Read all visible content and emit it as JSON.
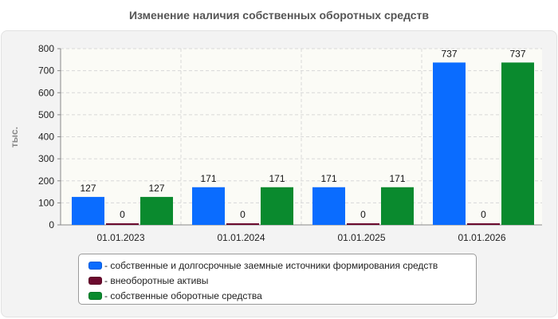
{
  "chart_data": {
    "type": "bar",
    "title": "Изменение наличия собственных оборотных средств",
    "ylabel": "тыс.",
    "xlabel": "",
    "categories": [
      "01.01.2023",
      "01.01.2024",
      "01.01.2025",
      "01.01.2026"
    ],
    "ylim": [
      0,
      800
    ],
    "yticks": [
      0,
      100,
      200,
      300,
      400,
      500,
      600,
      700,
      800
    ],
    "grid": true,
    "legend_position": "bottom",
    "series": [
      {
        "name": "собственные и долгосрочные заемные источники формирования средств",
        "color": "#0a6cff",
        "values": [
          127,
          171,
          171,
          737
        ],
        "labels": [
          "127",
          "171",
          "171",
          "737"
        ]
      },
      {
        "name": "внеоборотные активы",
        "color": "#6b0a2e",
        "values": [
          0,
          0,
          0,
          0
        ],
        "labels": [
          "0",
          "0",
          "0",
          "0"
        ]
      },
      {
        "name": "собственные оборотные средства",
        "color": "#0a8a2e",
        "values": [
          127,
          171,
          171,
          737
        ],
        "labels": [
          "127",
          "171",
          "171",
          "737"
        ]
      }
    ]
  }
}
